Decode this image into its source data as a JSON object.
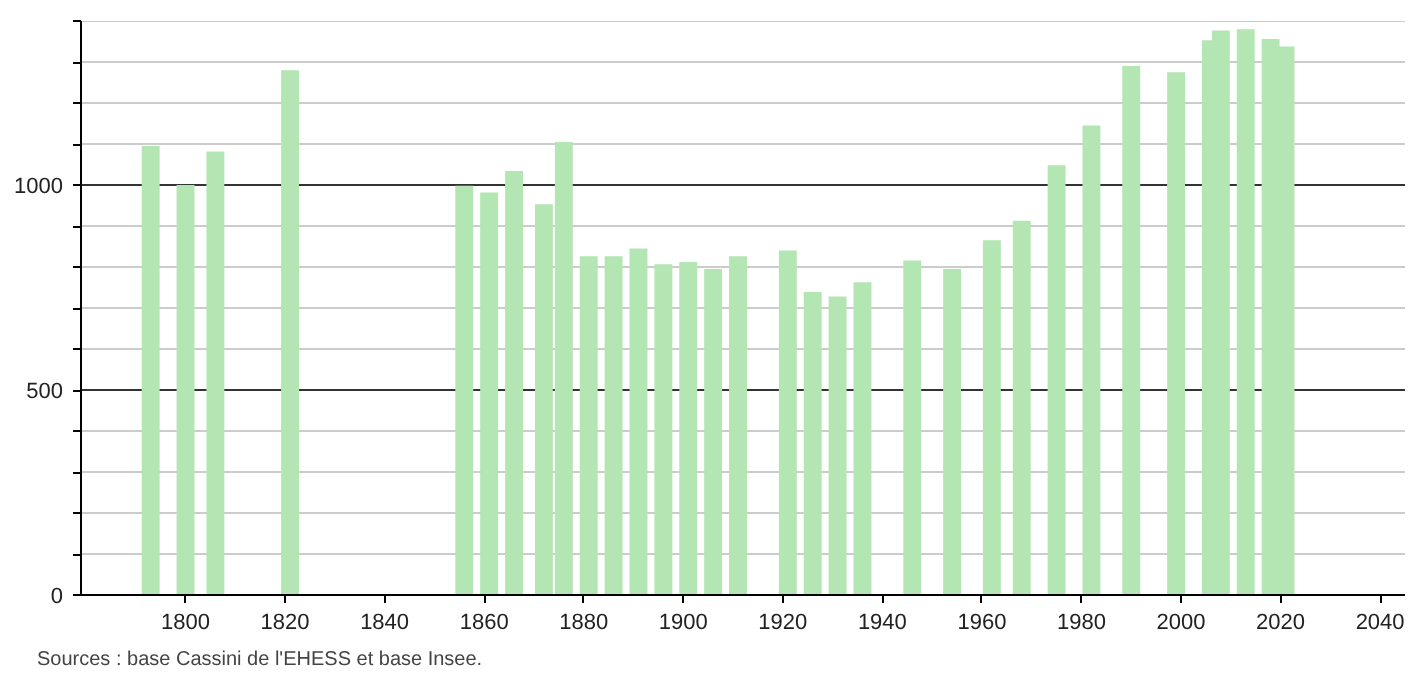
{
  "chart_data": {
    "type": "bar",
    "x": [
      1793,
      1800,
      1806,
      1821,
      1856,
      1861,
      1866,
      1872,
      1876,
      1881,
      1886,
      1891,
      1896,
      1901,
      1906,
      1911,
      1921,
      1926,
      1931,
      1936,
      1946,
      1954,
      1962,
      1968,
      1975,
      1982,
      1990,
      1999,
      2006,
      2008,
      2013,
      2018,
      2021
    ],
    "values": [
      1095,
      1000,
      1082,
      1280,
      998,
      982,
      1034,
      953,
      1105,
      826,
      826,
      845,
      807,
      812,
      795,
      826,
      840,
      739,
      728,
      763,
      816,
      795,
      865,
      913,
      1048,
      1145,
      1290,
      1275,
      1353,
      1377,
      1380,
      1356,
      1338
    ],
    "color": "#b3e6b3",
    "xlim": [
      1779,
      2045
    ],
    "xticks": [
      1800,
      1820,
      1840,
      1860,
      1880,
      1900,
      1920,
      1940,
      1960,
      1980,
      2000,
      2020,
      2040
    ],
    "ylim": [
      0,
      1400
    ],
    "yticks": [
      0,
      {
        "value": 100,
        "label": null
      },
      {
        "value": 200,
        "label": null
      },
      {
        "value": 300,
        "label": null
      },
      {
        "value": 400,
        "label": null
      },
      500,
      {
        "value": 600,
        "label": null
      },
      {
        "value": 700,
        "label": null
      },
      {
        "value": 800,
        "label": null
      },
      {
        "value": 900,
        "label": null
      },
      1000,
      {
        "value": 1100,
        "label": null
      },
      {
        "value": 1200,
        "label": null
      },
      {
        "value": 1300,
        "label": null
      },
      {
        "value": 1400,
        "label": null
      }
    ],
    "grid": "y",
    "annotations": [
      "Sources : base Cassini de l'EHESS et base Insee."
    ]
  }
}
